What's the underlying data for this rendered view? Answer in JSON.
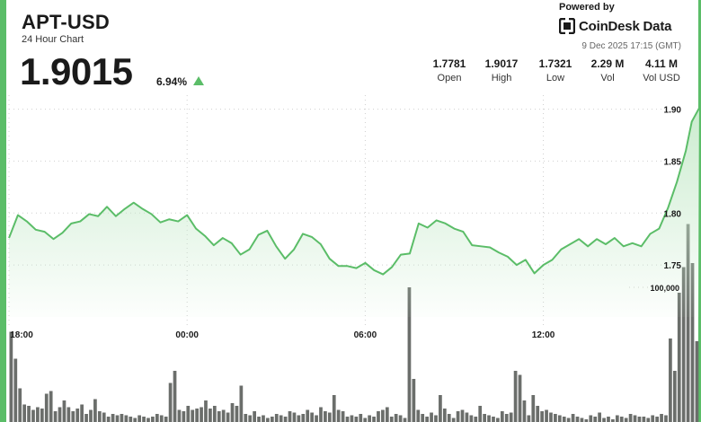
{
  "header": {
    "ticker": "APT-USD",
    "subtitle": "24 Hour Chart",
    "price": "1.9015",
    "change": "6.94%"
  },
  "brand": {
    "powered_by": "Powered by",
    "name": "CoinDesk Data",
    "timestamp": "9 Dec 2025 17:15 (GMT)"
  },
  "stats": [
    {
      "value": "1.7781",
      "label": "Open"
    },
    {
      "value": "1.9017",
      "label": "High"
    },
    {
      "value": "1.7321",
      "label": "Low"
    },
    {
      "value": "2.29 M",
      "label": "Vol"
    },
    {
      "value": "4.11 M",
      "label": "Vol USD"
    }
  ],
  "colors": {
    "accent": "#5bbd68",
    "fill_top": "#c9ebcd",
    "volume": "#6b6e6b"
  },
  "chart_data": {
    "type": "area",
    "title": "",
    "ylim": [
      1.7,
      1.91
    ],
    "y_ticks": [
      "1.90",
      "1.85",
      "1.80",
      "1.75"
    ],
    "x_ticks": [
      {
        "label": "18:00",
        "t": 0
      },
      {
        "label": "00:00",
        "t": 6
      },
      {
        "label": "06:00",
        "t": 12
      },
      {
        "label": "12:00",
        "t": 18
      }
    ],
    "t_range": [
      0,
      23.25
    ],
    "price_series": [
      [
        0.0,
        1.776
      ],
      [
        0.3,
        1.798
      ],
      [
        0.6,
        1.792
      ],
      [
        0.9,
        1.784
      ],
      [
        1.2,
        1.782
      ],
      [
        1.5,
        1.775
      ],
      [
        1.8,
        1.781
      ],
      [
        2.1,
        1.79
      ],
      [
        2.4,
        1.792
      ],
      [
        2.7,
        1.799
      ],
      [
        3.0,
        1.797
      ],
      [
        3.3,
        1.806
      ],
      [
        3.6,
        1.797
      ],
      [
        3.9,
        1.804
      ],
      [
        4.2,
        1.81
      ],
      [
        4.5,
        1.804
      ],
      [
        4.8,
        1.799
      ],
      [
        5.1,
        1.791
      ],
      [
        5.4,
        1.794
      ],
      [
        5.7,
        1.792
      ],
      [
        6.0,
        1.798
      ],
      [
        6.3,
        1.785
      ],
      [
        6.6,
        1.778
      ],
      [
        6.9,
        1.769
      ],
      [
        7.2,
        1.776
      ],
      [
        7.5,
        1.771
      ],
      [
        7.8,
        1.76
      ],
      [
        8.1,
        1.765
      ],
      [
        8.4,
        1.779
      ],
      [
        8.7,
        1.783
      ],
      [
        9.0,
        1.768
      ],
      [
        9.3,
        1.756
      ],
      [
        9.6,
        1.765
      ],
      [
        9.9,
        1.78
      ],
      [
        10.2,
        1.777
      ],
      [
        10.5,
        1.77
      ],
      [
        10.8,
        1.756
      ],
      [
        11.1,
        1.749
      ],
      [
        11.4,
        1.749
      ],
      [
        11.7,
        1.747
      ],
      [
        12.0,
        1.752
      ],
      [
        12.3,
        1.745
      ],
      [
        12.6,
        1.741
      ],
      [
        12.9,
        1.748
      ],
      [
        13.2,
        1.76
      ],
      [
        13.5,
        1.761
      ],
      [
        13.8,
        1.79
      ],
      [
        14.1,
        1.786
      ],
      [
        14.4,
        1.793
      ],
      [
        14.7,
        1.79
      ],
      [
        15.0,
        1.785
      ],
      [
        15.3,
        1.782
      ],
      [
        15.6,
        1.769
      ],
      [
        15.9,
        1.768
      ],
      [
        16.2,
        1.767
      ],
      [
        16.5,
        1.762
      ],
      [
        16.8,
        1.758
      ],
      [
        17.1,
        1.75
      ],
      [
        17.4,
        1.755
      ],
      [
        17.7,
        1.742
      ],
      [
        18.0,
        1.75
      ],
      [
        18.3,
        1.755
      ],
      [
        18.6,
        1.765
      ],
      [
        18.9,
        1.77
      ],
      [
        19.2,
        1.775
      ],
      [
        19.5,
        1.768
      ],
      [
        19.8,
        1.775
      ],
      [
        20.1,
        1.77
      ],
      [
        20.4,
        1.776
      ],
      [
        20.7,
        1.768
      ],
      [
        21.0,
        1.771
      ],
      [
        21.3,
        1.768
      ],
      [
        21.6,
        1.78
      ],
      [
        21.9,
        1.785
      ],
      [
        22.2,
        1.805
      ],
      [
        22.5,
        1.83
      ],
      [
        22.8,
        1.86
      ],
      [
        23.0,
        1.888
      ],
      [
        23.25,
        1.901
      ]
    ],
    "volume_label": "100,000",
    "volume_tick_value": 100000,
    "volume_max": 150000,
    "volume_series": [
      67000,
      47000,
      25000,
      13000,
      12000,
      9000,
      11000,
      10000,
      21000,
      23000,
      8000,
      11000,
      16000,
      11000,
      8000,
      10000,
      13000,
      6000,
      9000,
      17000,
      8000,
      7000,
      4000,
      6000,
      5000,
      6000,
      5000,
      4000,
      3000,
      5000,
      4000,
      3000,
      4000,
      6000,
      5000,
      4000,
      29000,
      38000,
      9000,
      8000,
      12000,
      9000,
      10000,
      11000,
      16000,
      10000,
      12000,
      8000,
      9000,
      7000,
      14000,
      12000,
      27000,
      6000,
      5000,
      8000,
      4000,
      5000,
      3000,
      4000,
      6000,
      5000,
      4000,
      8000,
      7000,
      5000,
      6000,
      9000,
      7000,
      5000,
      11000,
      8000,
      7000,
      20000,
      9000,
      8000,
      4000,
      5000,
      4000,
      6000,
      3000,
      5000,
      4000,
      8000,
      9000,
      11000,
      4000,
      6000,
      5000,
      3000,
      100000,
      32000,
      9000,
      6000,
      4000,
      7000,
      5000,
      20000,
      10000,
      6000,
      3000,
      8000,
      9000,
      7000,
      5000,
      4000,
      12000,
      6000,
      5000,
      4000,
      3000,
      8000,
      6000,
      7000,
      38000,
      35000,
      16000,
      5000,
      20000,
      12000,
      8000,
      9000,
      7000,
      6000,
      5000,
      4000,
      3000,
      6000,
      4000,
      3000,
      2000,
      5000,
      4000,
      7000,
      3000,
      4000,
      2000,
      5000,
      4000,
      3000,
      6000,
      5000,
      4000,
      4000,
      3000,
      5000,
      4000,
      6000,
      5000,
      62000,
      38000,
      96000,
      115000,
      147000,
      118000,
      60000
    ]
  }
}
